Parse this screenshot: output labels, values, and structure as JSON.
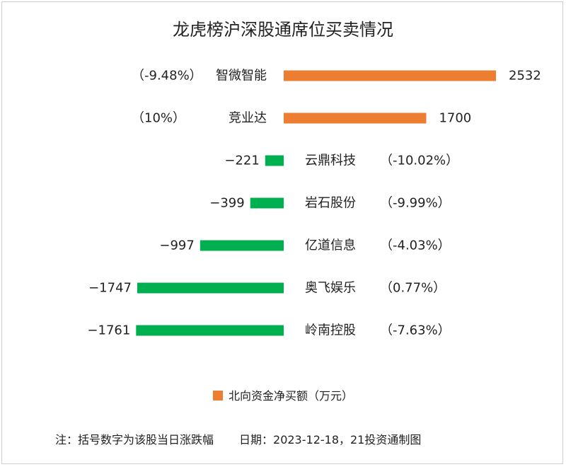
{
  "colors": {
    "positive": "#ED7D31",
    "negative": "#00B050",
    "text": "#222222"
  },
  "legend": {
    "label": "北向资金净买额（万元）"
  },
  "footer": {
    "note": "注：括号数字为该股当日涨跌幅",
    "date": "日期：2023-12-18，21投资通制图"
  },
  "chart_data": {
    "type": "bar",
    "orientation": "horizontal",
    "title": "龙虎榜沪深股通席位买卖情况",
    "categories": [
      "智微智能",
      "竞业达",
      "云鼎科技",
      "岩石股份",
      "亿道信息",
      "奥飞娱乐",
      "岭南控股"
    ],
    "values": [
      2532,
      1700,
      -221,
      -399,
      -997,
      -1747,
      -1761
    ],
    "value_labels": [
      "2532",
      "1700",
      "-221",
      "-399",
      "-997",
      "-1747",
      "-1761"
    ],
    "changes": [
      "（-9.48%）",
      "（10%）",
      "（-10.02%）",
      "（-9.99%）",
      "（-4.03%）",
      "（0.77%）",
      "（-7.63%）"
    ],
    "series": [
      {
        "name": "北向资金净买额（万元）",
        "values": [
          2532,
          1700,
          -221,
          -399,
          -997,
          -1747,
          -1761
        ]
      }
    ],
    "legend_position": "bottom",
    "grid": false
  }
}
